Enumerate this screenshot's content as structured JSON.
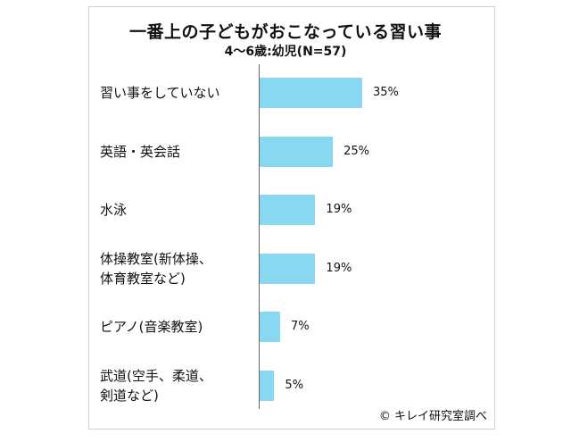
{
  "chart_data": {
    "type": "bar",
    "orientation": "horizontal",
    "title": "一番上の子どもがおこなっている習い事",
    "subtitle": "4〜6歳:幼児(N=57)",
    "categories": [
      "習い事をしていない",
      "英語・英会話",
      "水泳",
      "体操教室(新体操、\n体育教室など)",
      "ピアノ(音楽教室)",
      "武道(空手、柔道、\n剣道など)"
    ],
    "values": [
      35,
      25,
      19,
      19,
      7,
      5
    ],
    "value_labels": [
      "35%",
      "25%",
      "19%",
      "19%",
      "7%",
      "5%"
    ],
    "unit": "%",
    "bar_color": "#87d8f0",
    "grid": false
  },
  "credit": "© キレイ研究室調べ"
}
